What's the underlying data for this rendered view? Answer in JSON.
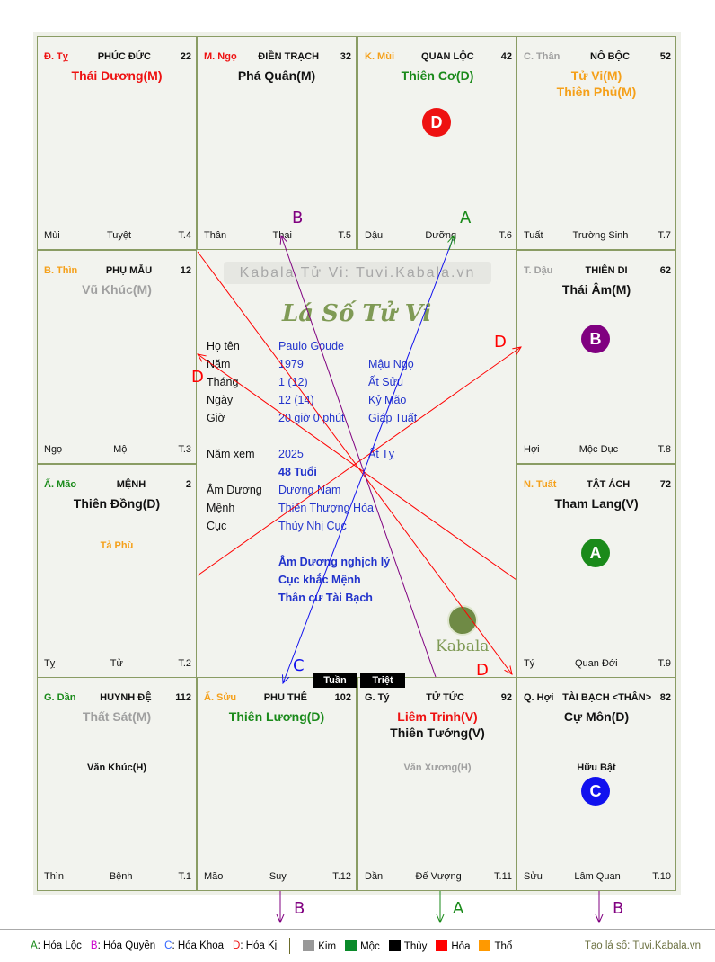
{
  "colors": {
    "red": "#ee1111",
    "black": "#111111",
    "green": "#1a8a1a",
    "orange": "#f5a01a",
    "gray": "#a0a0a0",
    "blue": "#1111ee",
    "purple": "#800080"
  },
  "cells": [
    {
      "pos": [
        0,
        0
      ],
      "can_chi": "Đ. Tỵ",
      "can_color": "red",
      "palace": "PHÚC ĐỨC",
      "number": "22",
      "stars": [
        {
          "text": "Thái Dương(M)",
          "color": "red"
        }
      ],
      "secondary": [],
      "branch": "Mùi",
      "phase": "Tuyệt",
      "t": "T.4"
    },
    {
      "pos": [
        0,
        1
      ],
      "can_chi": "M. Ngọ",
      "can_color": "red",
      "palace": "ĐIỀN TRẠCH",
      "number": "32",
      "stars": [
        {
          "text": "Phá Quân(M)",
          "color": "black"
        }
      ],
      "secondary": [],
      "branch": "Thân",
      "phase": "Thai",
      "t": "T.5"
    },
    {
      "pos": [
        0,
        2
      ],
      "can_chi": "K. Mùi",
      "can_color": "orange",
      "palace": "QUAN LỘC",
      "number": "42",
      "stars": [
        {
          "text": "Thiên Cơ(D)",
          "color": "green"
        }
      ],
      "secondary": [],
      "badge": {
        "letter": "D",
        "color": "red"
      },
      "branch": "Dậu",
      "phase": "Dưỡng",
      "t": "T.6"
    },
    {
      "pos": [
        0,
        3
      ],
      "can_chi": "C. Thân",
      "can_color": "gray",
      "palace": "NÔ BỘC",
      "number": "52",
      "stars": [
        {
          "text": "Tử Vi(M)",
          "color": "orange"
        },
        {
          "text": "Thiên Phủ(M)",
          "color": "orange"
        }
      ],
      "secondary": [],
      "branch": "Tuất",
      "phase": "Trường Sinh",
      "t": "T.7"
    },
    {
      "pos": [
        1,
        0
      ],
      "can_chi": "B. Thìn",
      "can_color": "orange",
      "palace": "PHỤ MẪU",
      "number": "12",
      "stars": [
        {
          "text": "Vũ Khúc(M)",
          "color": "gray"
        }
      ],
      "secondary": [],
      "branch": "Ngọ",
      "phase": "Mộ",
      "t": "T.3"
    },
    {
      "pos": [
        1,
        3
      ],
      "can_chi": "T. Dậu",
      "can_color": "gray",
      "palace": "THIÊN DI",
      "number": "62",
      "stars": [
        {
          "text": "Thái Âm(M)",
          "color": "black"
        }
      ],
      "secondary": [],
      "badge": {
        "letter": "B",
        "color": "purple"
      },
      "branch": "Hợi",
      "phase": "Mộc Dục",
      "t": "T.8"
    },
    {
      "pos": [
        2,
        0
      ],
      "can_chi": "Ấ. Mão",
      "can_color": "green",
      "palace": "MỆNH",
      "number": "2",
      "stars": [
        {
          "text": "Thiên Đồng(D)",
          "color": "black"
        }
      ],
      "secondary": [
        {
          "text": "Tả Phù",
          "color": "orange"
        }
      ],
      "branch": "Tỵ",
      "phase": "Tử",
      "t": "T.2"
    },
    {
      "pos": [
        2,
        3
      ],
      "can_chi": "N. Tuất",
      "can_color": "orange",
      "palace": "TẬT ÁCH",
      "number": "72",
      "stars": [
        {
          "text": "Tham Lang(V)",
          "color": "black"
        }
      ],
      "secondary": [],
      "badge": {
        "letter": "A",
        "color": "green"
      },
      "branch": "Tý",
      "phase": "Quan Đới",
      "t": "T.9"
    },
    {
      "pos": [
        3,
        0
      ],
      "can_chi": "G. Dần",
      "can_color": "green",
      "palace": "HUYNH ĐỆ",
      "number": "112",
      "stars": [
        {
          "text": "Thất Sát(M)",
          "color": "gray"
        }
      ],
      "secondary": [
        {
          "text": "Văn Khúc(H)",
          "color": "black"
        }
      ],
      "branch": "Thìn",
      "phase": "Bệnh",
      "t": "T.1"
    },
    {
      "pos": [
        3,
        1
      ],
      "can_chi": "Ấ. Sửu",
      "can_color": "orange",
      "palace": "PHU THÊ",
      "number": "102",
      "stars": [
        {
          "text": "Thiên Lương(D)",
          "color": "green"
        }
      ],
      "secondary": [],
      "branch": "Mão",
      "phase": "Suy",
      "t": "T.12"
    },
    {
      "pos": [
        3,
        2
      ],
      "can_chi": "G. Tý",
      "can_color": "black",
      "palace": "TỬ TỨC",
      "number": "92",
      "stars": [
        {
          "text": "Liêm Trinh(V)",
          "color": "red"
        },
        {
          "text": "Thiên Tướng(V)",
          "color": "black"
        }
      ],
      "secondary": [
        {
          "text": "Văn Xương(H)",
          "color": "gray"
        }
      ],
      "branch": "Dần",
      "phase": "Đế Vượng",
      "t": "T.11"
    },
    {
      "pos": [
        3,
        3
      ],
      "can_chi": "Q. Hợi",
      "can_color": "black",
      "palace": "TÀI BẠCH <THÂN>",
      "number": "82",
      "stars": [
        {
          "text": "Cự Môn(D)",
          "color": "black"
        }
      ],
      "secondary": [
        {
          "text": "Hữu Bật",
          "color": "black"
        }
      ],
      "badge": {
        "letter": "C",
        "color": "blue"
      },
      "branch": "Sửu",
      "phase": "Lâm Quan",
      "t": "T.10"
    }
  ],
  "center": {
    "watermark": "Kabala Tử Vi: Tuvi.Kabala.vn",
    "title": "Lá Số Tử Vi",
    "logo_text": "Kabala",
    "info": [
      {
        "label": "Họ tên",
        "value": "Paulo Goude",
        "extra": ""
      },
      {
        "label": "Năm",
        "value": "1979",
        "extra": "Mậu Ngọ"
      },
      {
        "label": "Tháng",
        "value": "1  (12)",
        "extra": "Ất Sửu"
      },
      {
        "label": "Ngày",
        "value": "12  (14)",
        "extra": "Kỷ Mão"
      },
      {
        "label": "Giờ",
        "value": "20 giờ 0 phút",
        "extra": "Giáp Tuất"
      },
      {
        "label": "Năm xem",
        "value": "2025",
        "extra": "Ất Tỵ"
      },
      {
        "label": "",
        "value": "48 Tuổi",
        "extra": ""
      },
      {
        "label": "Âm Dương",
        "value": "Dương Nam",
        "extra": ""
      },
      {
        "label": "Mệnh",
        "value": "Thiên Thượng Hỏa",
        "extra": ""
      },
      {
        "label": "Cục",
        "value": "Thủy Nhị Cục",
        "extra": ""
      }
    ],
    "notes": [
      "Âm Dương nghịch lý",
      "Cục khắc Mệnh",
      "Thân cư Tài Bạch"
    ]
  },
  "tuan": "Tuần",
  "triet": "Triệt",
  "arrows": {
    "top_b": "B",
    "top_a": "A",
    "left_d": "D",
    "right_d": "D",
    "bottom_c": "C",
    "bottom_d": "D",
    "out_b1": "B",
    "out_a": "A",
    "out_b2": "B"
  },
  "legend": {
    "hoa": [
      {
        "key": "A",
        "label": ": Hóa Lộc",
        "color": "#1a8a1a"
      },
      {
        "key": "B",
        "label": ": Hóa Quyền",
        "color": "#cc00cc"
      },
      {
        "key": "C",
        "label": ": Hóa Khoa",
        "color": "#3366ff"
      },
      {
        "key": "D",
        "label": ": Hóa Kị",
        "color": "#ee1111"
      }
    ],
    "elements": [
      {
        "label": "Kim",
        "color": "#999999"
      },
      {
        "label": "Mộc",
        "color": "#0a8a2a"
      },
      {
        "label": "Thủy",
        "color": "#000000"
      },
      {
        "label": "Hỏa",
        "color": "#ff0000"
      },
      {
        "label": "Thổ",
        "color": "#ff9900"
      }
    ],
    "credit": "Tạo lá số: Tuvi.Kabala.vn"
  }
}
